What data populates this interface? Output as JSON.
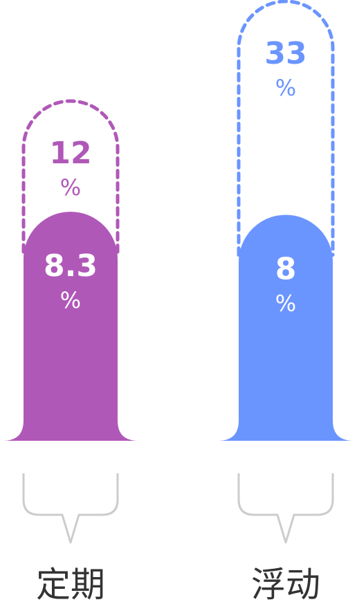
{
  "chart_data": {
    "type": "bar",
    "categories": [
      "定期",
      "浮动"
    ],
    "colors": [
      "#b058b8",
      "#6b95fe"
    ],
    "bracket_color": "#cccccc",
    "label_color": "#333333",
    "series": [
      {
        "values": [
          8.3,
          8
        ]
      },
      {
        "values": [
          12,
          33
        ]
      }
    ],
    "value_labels": [
      {
        "value": "8.3",
        "target": "12",
        "unit": "%"
      },
      {
        "value": "8",
        "target": "33",
        "unit": "%"
      }
    ],
    "ylim": [
      0,
      40
    ],
    "legend": "none",
    "grid": false
  }
}
